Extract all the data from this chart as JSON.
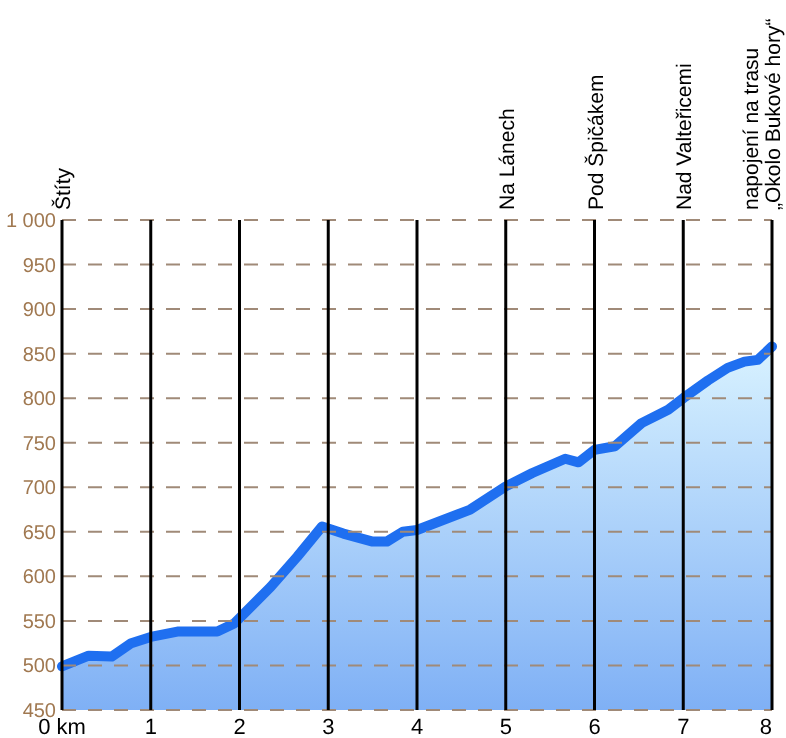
{
  "chart_data": {
    "type": "area",
    "x": [
      0,
      0.3,
      0.56,
      0.78,
      1,
      1.3,
      1.75,
      1.94,
      2.35,
      2.65,
      2.93,
      3.17,
      3.5,
      3.66,
      3.84,
      4,
      4.6,
      5,
      5.3,
      5.67,
      5.82,
      6,
      6.23,
      6.53,
      6.83,
      7,
      7.28,
      7.5,
      7.69,
      7.84,
      8
    ],
    "series": [
      {
        "color": "#1f6ff0",
        "values": [
          499,
          511,
          510,
          525,
          532,
          538,
          538,
          547,
          588,
          622,
          656,
          648,
          639,
          639,
          650,
          652,
          675,
          701,
          716,
          732,
          728,
          742,
          746,
          772,
          787,
          800,
          820,
          834,
          841,
          843,
          858
        ]
      }
    ],
    "xlim": [
      0,
      8
    ],
    "xticks": [
      {
        "value": 0,
        "label": "0 km"
      },
      1,
      2,
      3,
      4,
      5,
      6,
      7,
      8
    ],
    "ylim": [
      450,
      1000
    ],
    "yticks": [
      450,
      500,
      550,
      600,
      650,
      700,
      750,
      800,
      850,
      900,
      950,
      {
        "value": 1000,
        "label": "1 000"
      }
    ],
    "grid": "y",
    "annotations": [
      "Štíty",
      "napojení na trasu\n„Okolo Bukové hory“"
    ],
    "ref_lines": [
      {
        "axis": "x",
        "value": 1,
        "label": null
      },
      {
        "axis": "x",
        "value": 2,
        "label": null
      },
      {
        "axis": "x",
        "value": 3,
        "label": null
      },
      {
        "axis": "x",
        "value": 4,
        "label": null
      },
      {
        "axis": "x",
        "value": 5,
        "label": "Na Lánech"
      },
      {
        "axis": "x",
        "value": 6,
        "label": "Pod Špičákem"
      },
      {
        "axis": "x",
        "value": 7,
        "label": "Nad Valteřicemi"
      }
    ]
  }
}
